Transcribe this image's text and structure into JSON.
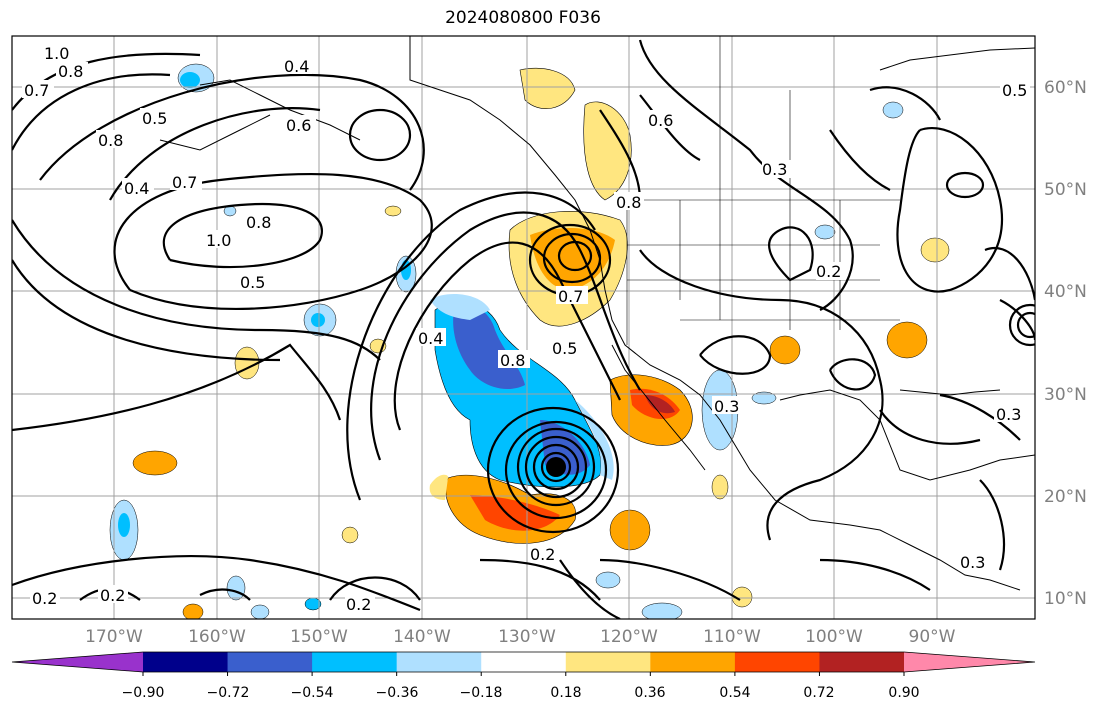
{
  "title": "2024080800 F036",
  "lon_labels": [
    "170°W",
    "160°W",
    "150°W",
    "140°W",
    "130°W",
    "120°W",
    "110°W",
    "100°W",
    "90°W"
  ],
  "lat_labels": [
    "60°N",
    "50°N",
    "40°N",
    "30°N",
    "20°N",
    "10°N"
  ],
  "colorbar": {
    "tick_labels": [
      "−0.90",
      "−0.72",
      "−0.54",
      "−0.36",
      "−0.18",
      "0.18",
      "0.36",
      "0.54",
      "0.72",
      "0.90"
    ],
    "colors": [
      "#9932cc",
      "#00008b",
      "#3a5fcd",
      "#00bfff",
      "#afe0ff",
      "#ffffff",
      "#ffe680",
      "#ffa500",
      "#ff4500",
      "#b22222",
      "#ff88aa"
    ]
  },
  "contour_labels": [
    "1.0",
    "0.8",
    "0.7",
    "0.4",
    "0.5",
    "0.8",
    "0.7",
    "1.0",
    "0.8",
    "0.5",
    "0.4",
    "0.6",
    "0.8",
    "0.7",
    "0.5",
    "0.3",
    "0.2",
    "0.3",
    "0.2",
    "0.2",
    "0.2",
    "0.3",
    "0.4",
    "0.8",
    "0.6",
    "0.3",
    "0.2",
    "0.5"
  ],
  "legend_colors": {
    "land": "#000000",
    "grid": "#a0a0a0",
    "storm_center": "#000000"
  }
}
